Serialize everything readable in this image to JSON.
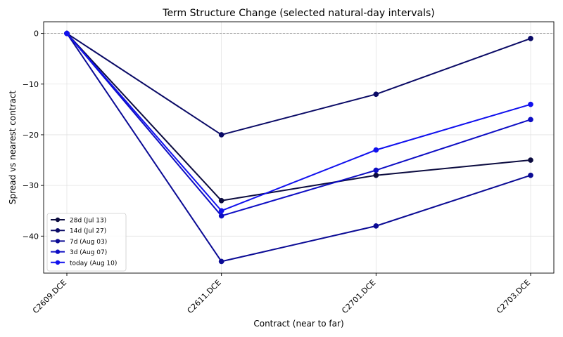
{
  "chart_data": {
    "type": "line",
    "title": "Term Structure Change (selected natural-day intervals)",
    "xlabel": "Contract (near to far)",
    "ylabel": "Spread vs nearest contract",
    "categories": [
      "C2609.DCE",
      "C2611.DCE",
      "C2701.DCE",
      "C2703.DCE"
    ],
    "ylim": [
      -47.3,
      2.3
    ],
    "yticks": [
      0,
      -10,
      -20,
      -30,
      -40
    ],
    "grid": true,
    "zero_reference_line": true,
    "legend_position": "lower-left",
    "series": [
      {
        "name": "28d (Jul 13)",
        "color": "#0b0b3f",
        "values": [
          0,
          -33,
          -28,
          -25
        ]
      },
      {
        "name": "14d (Jul 27)",
        "color": "#0a0a66",
        "values": [
          0,
          -20,
          -12,
          -1
        ]
      },
      {
        "name": "7d (Aug 03)",
        "color": "#0b0b95",
        "values": [
          0,
          -45,
          -38,
          -28
        ]
      },
      {
        "name": "3d (Aug 07)",
        "color": "#0d0dc4",
        "values": [
          0,
          -36,
          -27,
          -17
        ]
      },
      {
        "name": "today (Aug 10)",
        "color": "#1111ee",
        "values": [
          0,
          -35,
          -23,
          -14
        ]
      }
    ]
  }
}
